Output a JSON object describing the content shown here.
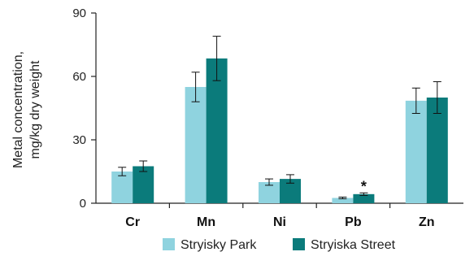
{
  "chart_data": {
    "type": "bar",
    "ylabel_line1": "Metal concentration,",
    "ylabel_line2": "mg/kg dry weight",
    "categories": [
      "Cr",
      "Mn",
      "Ni",
      "Pb",
      "Zn"
    ],
    "ylim": [
      0,
      90
    ],
    "yticks": [
      "0",
      "30",
      "60",
      "90"
    ],
    "ytick_values": [
      0,
      30,
      60,
      90
    ],
    "grid": false,
    "legend_position": "bottom",
    "series": [
      {
        "name": "Stryisky Park",
        "color": "#8fd3df",
        "values": [
          15,
          55,
          10,
          2.5,
          48.5
        ],
        "errors": [
          2,
          7,
          1.5,
          0.4,
          6
        ]
      },
      {
        "name": "Stryiska Street",
        "color": "#0b7b7b",
        "values": [
          17.5,
          68.5,
          11.5,
          4.3,
          50
        ],
        "errors": [
          2.5,
          10.5,
          2,
          0.6,
          7.5
        ]
      }
    ],
    "annotations": [
      {
        "category": "Pb",
        "series": 1,
        "text": "*"
      }
    ]
  }
}
